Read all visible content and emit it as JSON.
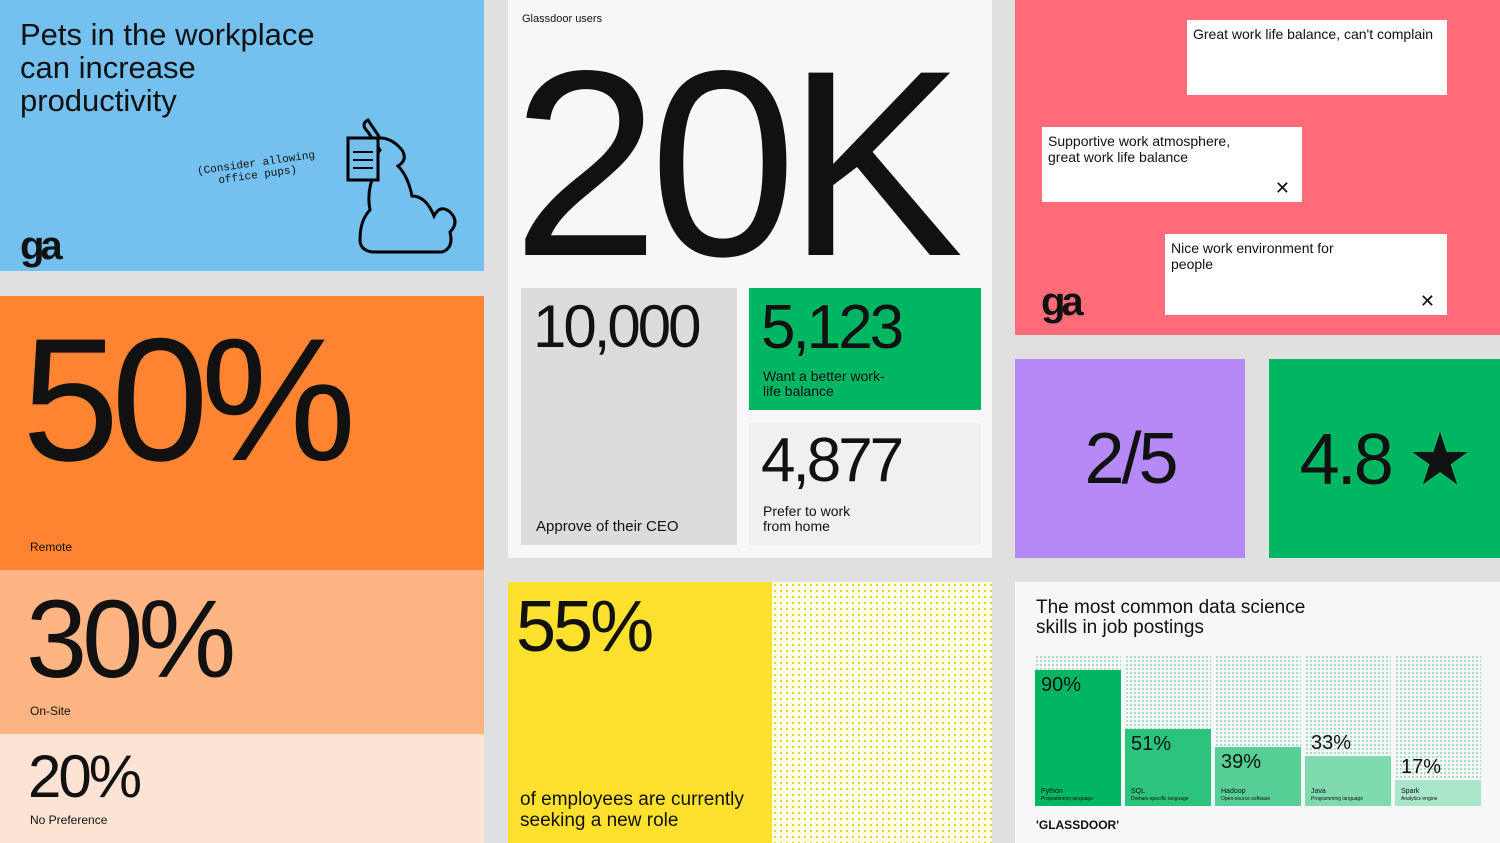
{
  "pets": {
    "title": "Pets in the workplace can increase productivity",
    "note": "(Consider allowing office pups)",
    "logo": "ga"
  },
  "work_pref": [
    {
      "value": "50%",
      "label": "Remote"
    },
    {
      "value": "30%",
      "label": "On-Site"
    },
    {
      "value": "20%",
      "label": "No Preference"
    }
  ],
  "users": {
    "label": "Glassdoor users",
    "total": "20K",
    "ceo": {
      "value": "10,000",
      "label": "Approve of their CEO"
    },
    "balance": {
      "value": "5,123",
      "label": "Want a better work-life balance"
    },
    "home": {
      "value": "4,877",
      "label": "Prefer to work from home"
    }
  },
  "reviews": {
    "items": [
      "Great work life balance, can't complain",
      "Supportive work atmosphere, great work life balance",
      "Nice work environment for people"
    ],
    "logo": "ga"
  },
  "ratings": {
    "fraction": "2/5",
    "stars": "4.8 ★"
  },
  "seeking": {
    "value": "55%",
    "label": "of employees are currently seeking a new role"
  },
  "chart_data": {
    "type": "bar",
    "title": "The most common data science skills in job postings",
    "ylim": [
      0,
      100
    ],
    "categories": [
      "Python",
      "SQL",
      "Hadoop",
      "Java",
      "Spark"
    ],
    "subtitles": [
      "Programming language",
      "Domain-specific language",
      "Open-source software",
      "Programming language",
      "Analytics engine"
    ],
    "values": [
      90,
      51,
      39,
      33,
      17
    ],
    "labels": [
      "90%",
      "51%",
      "39%",
      "33%",
      "17%"
    ],
    "colors": [
      "#00b662",
      "#2cc37c",
      "#55cf95",
      "#7fdab0",
      "#a9e6ca"
    ]
  },
  "brand": "'GLASSDOOR'"
}
